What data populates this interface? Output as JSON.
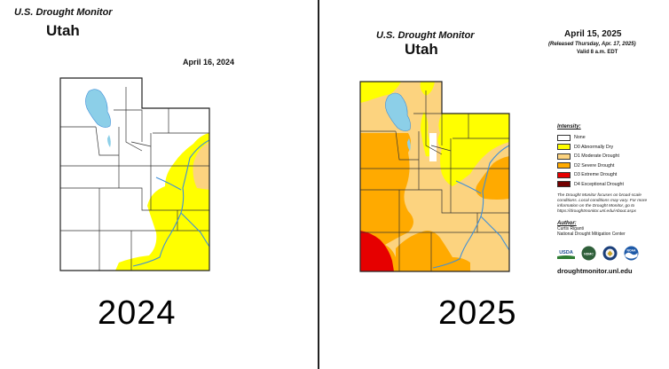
{
  "panels": [
    {
      "monitor_title": "U.S. Drought Monitor",
      "state": "Utah",
      "date": "April 16, 2024",
      "year_label": "2024"
    },
    {
      "monitor_title": "U.S. Drought Monitor",
      "state": "Utah",
      "date": "April 15, 2025",
      "release": "(Released Thursday, Apr. 17, 2025)",
      "valid": "Valid 8 a.m. EDT",
      "year_label": "2025"
    }
  ],
  "legend": {
    "title": "Intensity:",
    "items": [
      {
        "label": "None",
        "color": "#ffffff"
      },
      {
        "label": "D0 Abnormally Dry",
        "color": "#ffff00"
      },
      {
        "label": "D1 Moderate Drought",
        "color": "#fcd37f"
      },
      {
        "label": "D2 Severe Drought",
        "color": "#ffaa00"
      },
      {
        "label": "D3 Extreme Drought",
        "color": "#e60000"
      },
      {
        "label": "D4 Exceptional Drought",
        "color": "#730000"
      }
    ],
    "note": "The Drought Monitor focuses on broad-scale conditions. Local conditions may vary. For more information on the Drought Monitor, go to https://droughtmonitor.unl.edu/About.aspx"
  },
  "author": {
    "title": "Author:",
    "name": "Curtis Riganti",
    "org": "National Drought Mitigation Center"
  },
  "logos": [
    {
      "name": "usda-logo",
      "text": "USDA"
    },
    {
      "name": "ndmc-logo",
      "text": "NDMC"
    },
    {
      "name": "doc-logo",
      "text": ""
    },
    {
      "name": "noaa-logo",
      "text": "NOAA"
    }
  ],
  "website": "droughtmonitor.unl.edu",
  "colors": {
    "lake": "#8ccfe8",
    "river": "#3f8fd8",
    "county_border": "#333333"
  }
}
